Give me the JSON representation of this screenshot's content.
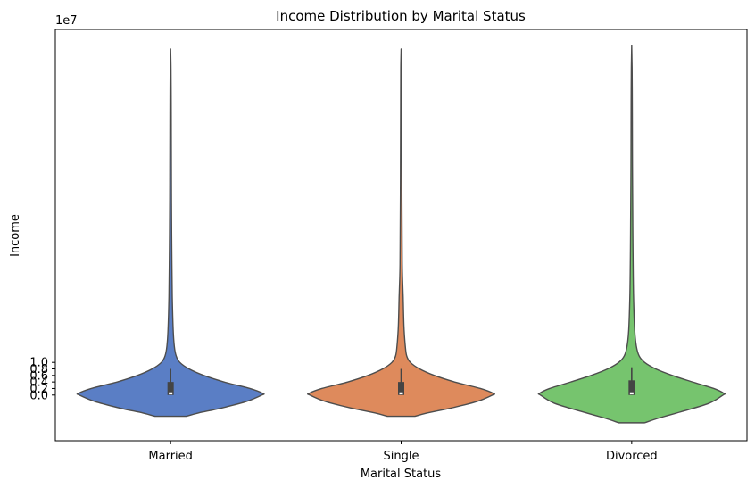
{
  "chart_data": {
    "type": "violin",
    "title": "Income Distribution by Marital Status",
    "xlabel": "Marital Status",
    "ylabel": "Income",
    "y_offset_label": "1e7",
    "y_scale": 10000000,
    "ylim": [
      -1.4,
      11.2
    ],
    "yticks": [
      0.0,
      0.2,
      0.4,
      0.6,
      0.8,
      1.0
    ],
    "ytick_labels": [
      "0.0",
      "0.2",
      "0.4",
      "0.6",
      "0.8",
      "1.0"
    ],
    "categories": [
      "Married",
      "Single",
      "Divorced"
    ],
    "series": [
      {
        "category": "Married",
        "color": "#5A7EC5",
        "min": -0.65,
        "max": 10.6,
        "q1": 0.0,
        "median": 0.05,
        "q3": 0.4,
        "whisker_low": 0.0,
        "whisker_high": 0.8,
        "density": [
          [
            -0.65,
            0.17
          ],
          [
            -0.55,
            0.3
          ],
          [
            -0.4,
            0.55
          ],
          [
            -0.2,
            0.82
          ],
          [
            0.0,
            0.99
          ],
          [
            0.05,
            1.0
          ],
          [
            0.2,
            0.86
          ],
          [
            0.4,
            0.58
          ],
          [
            0.6,
            0.36
          ],
          [
            0.8,
            0.2
          ],
          [
            1.0,
            0.1
          ],
          [
            1.2,
            0.06
          ],
          [
            1.5,
            0.04
          ],
          [
            2.0,
            0.028
          ],
          [
            3.0,
            0.018
          ],
          [
            4.0,
            0.014
          ],
          [
            5.0,
            0.011
          ],
          [
            6.0,
            0.009
          ],
          [
            7.0,
            0.008
          ],
          [
            8.0,
            0.007
          ],
          [
            9.0,
            0.006
          ],
          [
            10.0,
            0.004
          ],
          [
            10.6,
            0.0
          ]
        ]
      },
      {
        "category": "Single",
        "color": "#DE8A5C",
        "min": -0.65,
        "max": 10.6,
        "q1": 0.0,
        "median": 0.05,
        "q3": 0.4,
        "whisker_low": 0.0,
        "whisker_high": 0.8,
        "density": [
          [
            -0.65,
            0.15
          ],
          [
            -0.55,
            0.28
          ],
          [
            -0.4,
            0.54
          ],
          [
            -0.2,
            0.82
          ],
          [
            0.0,
            0.99
          ],
          [
            0.05,
            1.0
          ],
          [
            0.2,
            0.86
          ],
          [
            0.4,
            0.58
          ],
          [
            0.6,
            0.36
          ],
          [
            0.8,
            0.2
          ],
          [
            1.0,
            0.1
          ],
          [
            1.2,
            0.06
          ],
          [
            1.5,
            0.045
          ],
          [
            2.0,
            0.032
          ],
          [
            2.5,
            0.026
          ],
          [
            3.0,
            0.022
          ],
          [
            3.5,
            0.016
          ],
          [
            4.0,
            0.012
          ],
          [
            5.0,
            0.01
          ],
          [
            6.0,
            0.008
          ],
          [
            7.0,
            0.007
          ],
          [
            8.0,
            0.006
          ],
          [
            9.0,
            0.005
          ],
          [
            10.0,
            0.004
          ],
          [
            10.6,
            0.0
          ]
        ]
      },
      {
        "category": "Divorced",
        "color": "#76C46E",
        "min": -0.85,
        "max": 10.7,
        "q1": 0.0,
        "median": 0.05,
        "q3": 0.45,
        "whisker_low": 0.0,
        "whisker_high": 0.85,
        "density": [
          [
            -0.85,
            0.14
          ],
          [
            -0.7,
            0.3
          ],
          [
            -0.5,
            0.55
          ],
          [
            -0.25,
            0.84
          ],
          [
            0.0,
            0.99
          ],
          [
            0.05,
            1.0
          ],
          [
            0.2,
            0.89
          ],
          [
            0.4,
            0.66
          ],
          [
            0.6,
            0.44
          ],
          [
            0.8,
            0.26
          ],
          [
            1.0,
            0.14
          ],
          [
            1.2,
            0.08
          ],
          [
            1.5,
            0.05
          ],
          [
            2.0,
            0.032
          ],
          [
            3.0,
            0.02
          ],
          [
            4.0,
            0.015
          ],
          [
            5.0,
            0.012
          ],
          [
            6.0,
            0.01
          ],
          [
            7.0,
            0.008
          ],
          [
            8.0,
            0.007
          ],
          [
            9.0,
            0.006
          ],
          [
            10.0,
            0.004
          ],
          [
            10.7,
            0.0
          ]
        ]
      }
    ]
  }
}
